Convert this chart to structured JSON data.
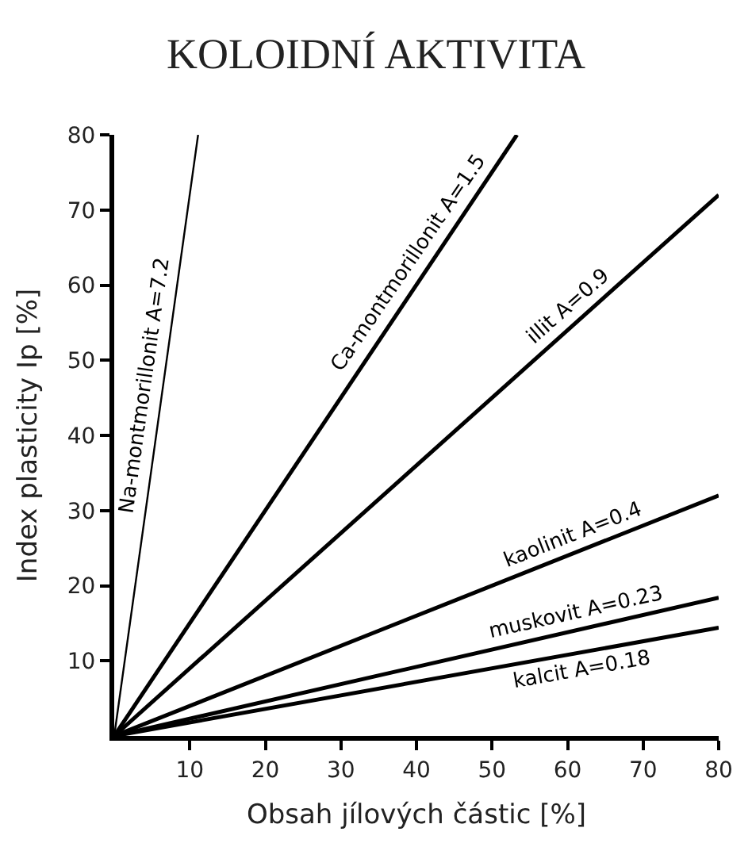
{
  "chart_data": {
    "type": "line",
    "title": "KOLOIDNÍ AKTIVITA",
    "xlabel": "Obsah jílových částic [%]",
    "ylabel": "Index plasticity Ip [%]",
    "xlim": [
      0,
      80
    ],
    "ylim": [
      0,
      80
    ],
    "xticks": [
      10,
      20,
      30,
      40,
      50,
      60,
      70,
      80
    ],
    "yticks": [
      10,
      20,
      30,
      40,
      50,
      60,
      70,
      80
    ],
    "legend": false,
    "marker": "none",
    "line_style": "solid",
    "series": [
      {
        "name": "Na-montmorillonit A=7.2",
        "color": "#000000",
        "x": [
          0,
          11.1
        ],
        "values": [
          0,
          80
        ]
      },
      {
        "name": "Ca-montmorillonit A=1.5",
        "color": "#000000",
        "x": [
          0,
          53.3
        ],
        "values": [
          0,
          80
        ]
      },
      {
        "name": "illit A=0.9",
        "color": "#000000",
        "x": [
          0,
          80
        ],
        "values": [
          0,
          72
        ]
      },
      {
        "name": "kaolinit A=0.4",
        "color": "#000000",
        "x": [
          0,
          80
        ],
        "values": [
          0,
          32
        ]
      },
      {
        "name": "muskovit A=0.23",
        "color": "#000000",
        "x": [
          0,
          80
        ],
        "values": [
          0,
          18.4
        ]
      },
      {
        "name": "kalcit A=0.18",
        "color": "#000000",
        "x": [
          0,
          80
        ],
        "values": [
          0,
          14.4
        ]
      }
    ]
  }
}
